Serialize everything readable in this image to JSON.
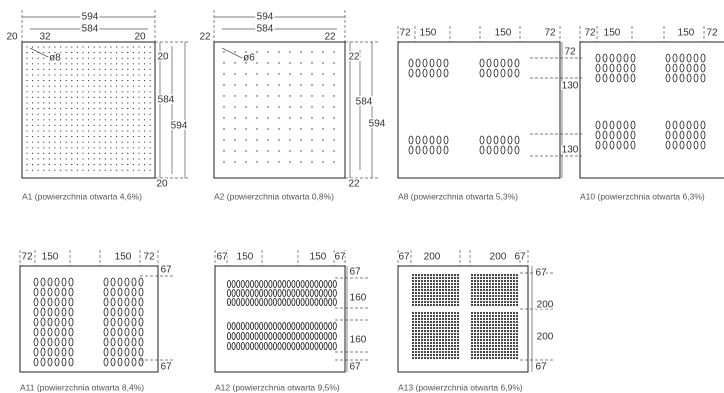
{
  "panels": [
    {
      "caption": "A1 (powierzchnia otwarta 4,6%)",
      "labels": [
        "594",
        "584",
        "20",
        "32",
        "20",
        "ø8",
        "20",
        "584",
        "594",
        "20"
      ]
    },
    {
      "caption": "A2 (powierzchnia otwarta 0,8%)",
      "labels": [
        "594",
        "584",
        "22",
        "22",
        "ø6",
        "22",
        "584",
        "594",
        "22"
      ]
    },
    {
      "caption": "A8 (powierzchnia otwarta 5,3%)",
      "labels": [
        "72",
        "150",
        "150",
        "72",
        "72",
        "130",
        "130"
      ]
    },
    {
      "caption": "A10 (powierzchnia otwarta 6,3%)",
      "labels": [
        "72",
        "150",
        "150",
        "72"
      ]
    },
    {
      "caption": "A11 (powierzchnia otwarta 8,4%)",
      "labels": [
        "72",
        "150",
        "150",
        "72",
        "67",
        "67"
      ]
    },
    {
      "caption": "A12 (powierzchnia otwarta 9,5%)",
      "labels": [
        "67",
        "150",
        "150",
        "67",
        "67",
        "160",
        "160",
        "67"
      ]
    },
    {
      "caption": "A13 (powierzchnia otwarta 6,9%)",
      "labels": [
        "67",
        "200",
        "200",
        "67",
        "67",
        "200",
        "200",
        "67"
      ]
    }
  ]
}
